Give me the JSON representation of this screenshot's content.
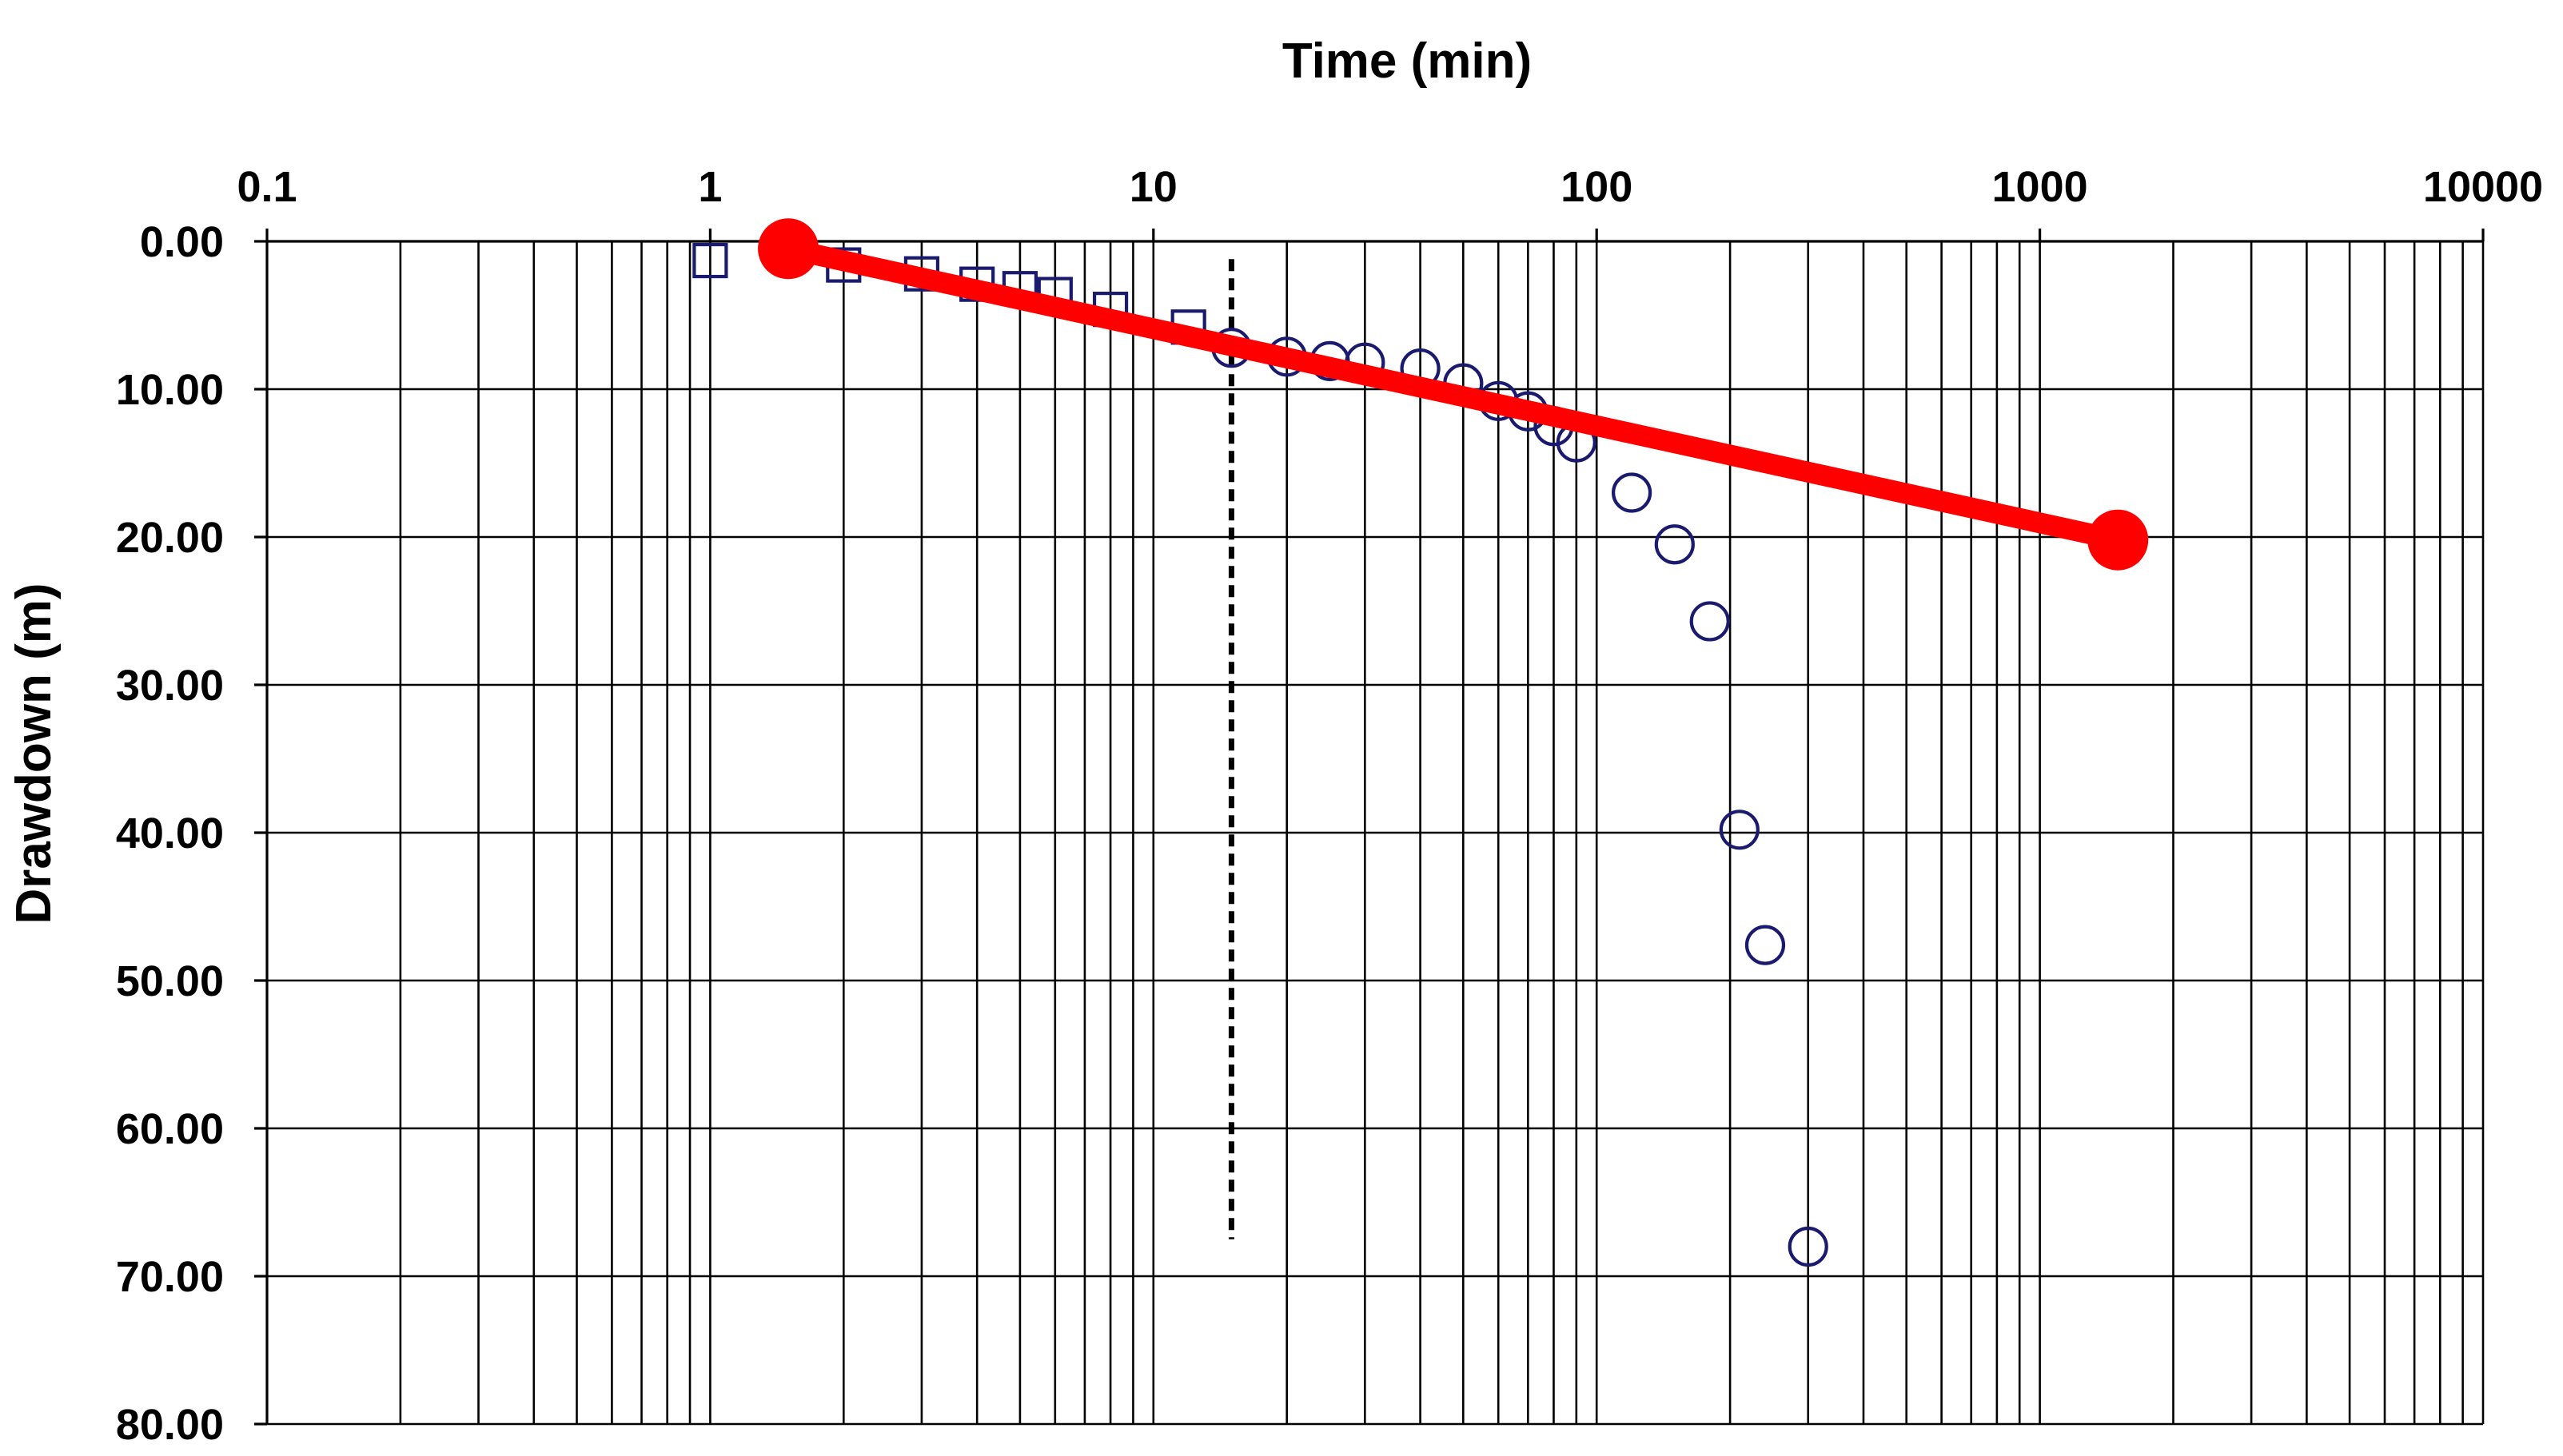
{
  "chart_data": {
    "type": "scatter",
    "title": "",
    "xlabel": "Time (min)",
    "ylabel": "Drawdown (m)",
    "x_scale": "log",
    "xlim": [
      0.1,
      10000
    ],
    "ylim": [
      0,
      80
    ],
    "y_inverted": true,
    "grid": true,
    "x_tick_labels": [
      "0.1",
      "1",
      "10",
      "100",
      "1000",
      "10000"
    ],
    "x_tick_values": [
      0.1,
      1,
      10,
      100,
      1000,
      10000
    ],
    "y_tick_labels": [
      "0.00",
      "10.00",
      "20.00",
      "30.00",
      "40.00",
      "50.00",
      "60.00",
      "70.00",
      "80.00"
    ],
    "y_tick_values": [
      0,
      10,
      20,
      30,
      40,
      50,
      60,
      70,
      80
    ],
    "series": [
      {
        "marker": "square",
        "color": "#1a1a6e",
        "x": [
          1,
          2,
          3,
          4,
          5,
          6,
          8,
          12
        ],
        "y": [
          1.3,
          1.6,
          2.2,
          2.9,
          3.2,
          3.6,
          4.6,
          5.8
        ]
      },
      {
        "marker": "circle",
        "color": "#1a1a6e",
        "x": [
          15,
          20,
          25,
          30,
          40,
          50,
          60,
          70,
          80,
          90,
          120,
          150,
          180,
          210,
          240,
          300
        ],
        "y": [
          7.2,
          7.8,
          8.1,
          8.2,
          8.6,
          9.6,
          10.8,
          11.5,
          12.5,
          13.6,
          17.0,
          20.5,
          25.7,
          39.8,
          47.6,
          68.0
        ]
      },
      {
        "marker": "line-endpoints",
        "color": "#ff0000",
        "x": [
          1.5,
          1500
        ],
        "y": [
          0.5,
          20.2
        ]
      }
    ],
    "annotations": [
      {
        "type": "vertical-dashed-line",
        "color": "#000000",
        "x": 15,
        "y_range": [
          1.2,
          67.5
        ]
      }
    ]
  }
}
